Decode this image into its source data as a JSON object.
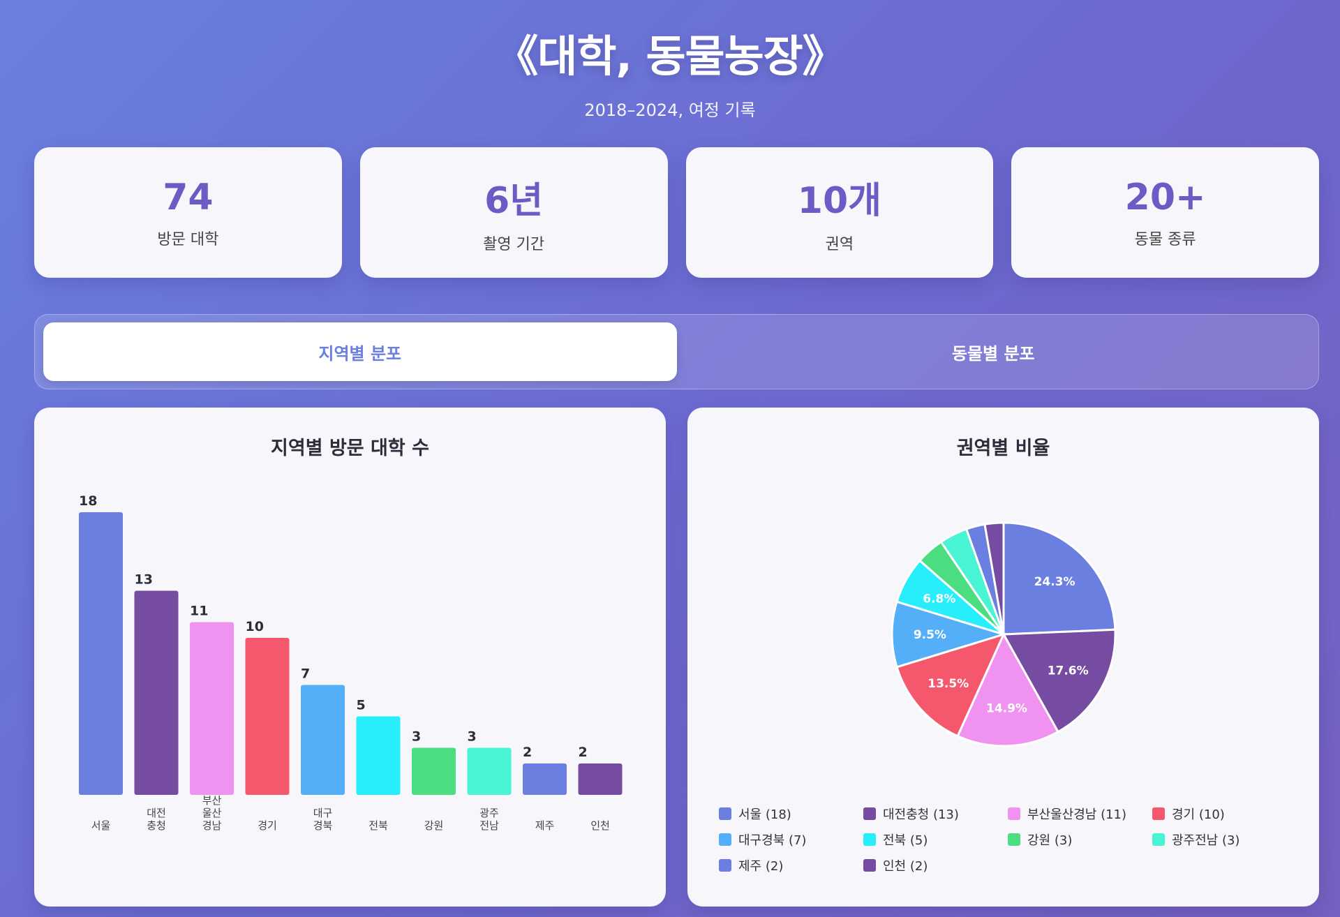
{
  "header": {
    "title": "《대학, 동물농장》",
    "subtitle": "2018–2024, 여정 기록"
  },
  "stats": [
    {
      "value": "74",
      "label": "방문 대학"
    },
    {
      "value": "6년",
      "label": "촬영 기간"
    },
    {
      "value": "10개",
      "label": "권역"
    },
    {
      "value": "20+",
      "label": "동물 종류"
    }
  ],
  "tabs": [
    {
      "label": "지역별 분포",
      "active": true
    },
    {
      "label": "동물별 분포",
      "active": false
    }
  ],
  "bar_panel": {
    "title": "지역별 방문 대학 수"
  },
  "pie_panel": {
    "title": "권역별 비율"
  },
  "colors": [
    "#6a7fe0",
    "#764ba2",
    "#f093f0",
    "#f5576c",
    "#54aef8",
    "#28eefc",
    "#4ade80",
    "#49f4d4",
    "#6a7fe0",
    "#764ba2"
  ],
  "chart_data": [
    {
      "type": "bar",
      "title": "지역별 방문 대학 수",
      "categories": [
        [
          "서울"
        ],
        [
          "대전",
          "충청"
        ],
        [
          "부산",
          "울산",
          "경남"
        ],
        [
          "경기"
        ],
        [
          "대구",
          "경북"
        ],
        [
          "전북"
        ],
        [
          "강원"
        ],
        [
          "광주",
          "전남"
        ],
        [
          "제주"
        ],
        [
          "인천"
        ]
      ],
      "values": [
        18,
        13,
        11,
        10,
        7,
        5,
        3,
        3,
        2,
        2
      ],
      "ylim": [
        0,
        18
      ],
      "grid": false,
      "data_labels": true
    },
    {
      "type": "pie",
      "title": "권역별 비율",
      "labels": [
        "서울",
        "대전충청",
        "부산울산경남",
        "경기",
        "대구경북",
        "전북",
        "강원",
        "광주전남",
        "제주",
        "인천"
      ],
      "values": [
        18,
        13,
        11,
        10,
        7,
        5,
        3,
        3,
        2,
        2
      ],
      "slice_labels": [
        "24.3%",
        "17.6%",
        "14.9%",
        "13.5%",
        "9.5%",
        "6.8%",
        "",
        "",
        "",
        ""
      ],
      "legend": [
        "서울 (18)",
        "대전충청 (13)",
        "부산울산경남 (11)",
        "경기 (10)",
        "대구경북 (7)",
        "전북 (5)",
        "강원 (3)",
        "광주전남 (3)",
        "제주 (2)",
        "인천 (2)"
      ],
      "legend_position": "bottom"
    }
  ]
}
